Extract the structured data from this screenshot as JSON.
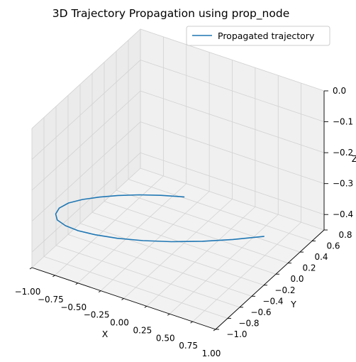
{
  "chart_data": {
    "type": "line",
    "projection": "3d",
    "title": "3D Trajectory Propagation using prop_node",
    "xlabel": "X",
    "ylabel": "Y",
    "zlabel": "Z",
    "xlim": [
      -1.0,
      1.0
    ],
    "ylim": [
      -1.0,
      0.8
    ],
    "zlim": [
      -0.45,
      0.0
    ],
    "x_ticks": [
      -1.0,
      -0.75,
      -0.5,
      -0.25,
      0.0,
      0.25,
      0.5,
      0.75,
      1.0
    ],
    "x_tick_labels": [
      "−1.00",
      "−0.75",
      "−0.50",
      "−0.25",
      "0.00",
      "0.25",
      "0.50",
      "0.75",
      "1.00"
    ],
    "y_ticks": [
      -1.0,
      -0.8,
      -0.6,
      -0.4,
      -0.2,
      0.0,
      0.2,
      0.4,
      0.6,
      0.8
    ],
    "y_tick_labels": [
      "−1.0",
      "−0.8",
      "−0.6",
      "−0.4",
      "−0.2",
      "0.0",
      "0.2",
      "0.4",
      "0.6",
      "0.8"
    ],
    "z_ticks": [
      -0.4,
      -0.3,
      -0.2,
      -0.1,
      0.0
    ],
    "z_tick_labels": [
      "−0.4",
      "−0.3",
      "−0.2",
      "−0.1",
      "0.0"
    ],
    "grid": true,
    "legend": {
      "placement": "top-right",
      "entries": [
        "Propagated trajectory"
      ]
    },
    "series": [
      {
        "name": "Propagated trajectory",
        "color": "#1f77b4",
        "x": [
          0.0,
          -0.199,
          -0.374,
          -0.538,
          -0.674,
          -0.785,
          -0.867,
          -0.896,
          -0.874,
          -0.809,
          -0.695,
          -0.55,
          -0.379,
          -0.173,
          0.053,
          0.289,
          0.533,
          0.759,
          0.98
        ],
        "y": [
          0.0,
          -0.083,
          -0.172,
          -0.275,
          -0.381,
          -0.486,
          -0.595,
          -0.705,
          -0.798,
          -0.871,
          -0.909,
          -0.92,
          -0.898,
          -0.846,
          -0.762,
          -0.65,
          -0.506,
          -0.347,
          -0.168
        ],
        "z": [
          -0.3,
          -0.3,
          -0.3,
          -0.3,
          -0.3,
          -0.3,
          -0.3,
          -0.3,
          -0.3,
          -0.3,
          -0.3,
          -0.3,
          -0.3,
          -0.3,
          -0.3,
          -0.3,
          -0.3,
          -0.3,
          -0.3
        ]
      }
    ]
  }
}
